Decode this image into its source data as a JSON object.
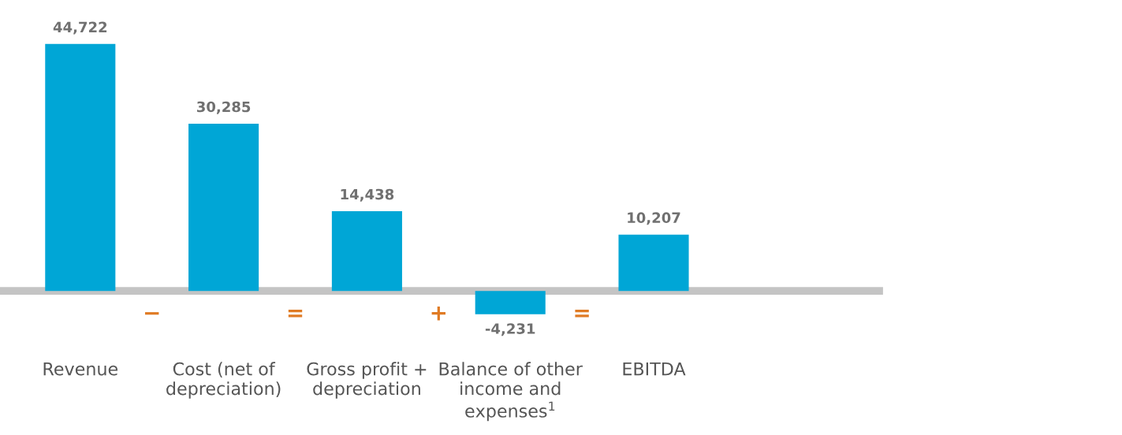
{
  "chart_data": {
    "type": "bar",
    "categories": [
      "Revenue",
      "Cost (net of depreciation)",
      "Gross profit + depreciation",
      "Balance of other income and expenses$^{1}$",
      "EBITDA"
    ],
    "values": [
      44722,
      30285,
      14438,
      -4231,
      10207
    ],
    "value_labels": [
      "44,722",
      "30,285",
      "14,438",
      "-4,231",
      "10,207"
    ],
    "color": "#00a6d6",
    "tick_labels": "x",
    "grid": false,
    "legend": false,
    "annotations": [
      "−",
      "=",
      "+",
      "="
    ]
  }
}
